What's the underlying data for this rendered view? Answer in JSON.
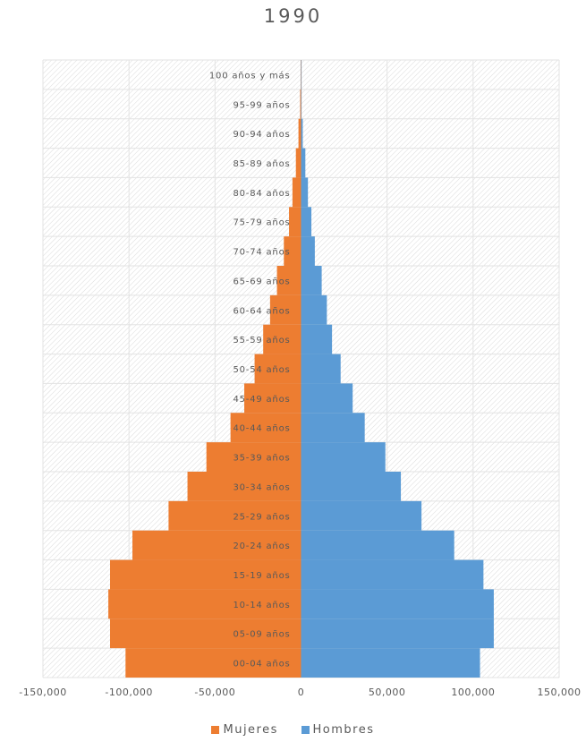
{
  "chart_data": {
    "type": "bar",
    "orientation": "horizontal",
    "stacked": true,
    "title": "1990",
    "categories": [
      "00-04 años",
      "05-09 años",
      "10-14 años",
      "15-19 años",
      "20-24 años",
      "25-29 años",
      "30-34 años",
      "35-39 años",
      "40-44 años",
      "45-49 años",
      "50-54 años",
      "55-59 años",
      "60-64 años",
      "65-69 años",
      "70-74 años",
      "75-79 años",
      "80-84 años",
      "85-89 años",
      "90-94 años",
      "95-99 años",
      "100 años y más"
    ],
    "series": [
      {
        "name": "Mujeres",
        "color": "#ED7D31",
        "values": [
          -102000,
          -111000,
          -112000,
          -111000,
          -98000,
          -77000,
          -66000,
          -55000,
          -41000,
          -33000,
          -27000,
          -22000,
          -18000,
          -14000,
          -10000,
          -7000,
          -5000,
          -3000,
          -1500,
          -500,
          -200
        ]
      },
      {
        "name": "Hombres",
        "color": "#5B9BD5",
        "values": [
          104000,
          112000,
          112000,
          106000,
          89000,
          70000,
          58000,
          49000,
          37000,
          30000,
          23000,
          18000,
          15000,
          12000,
          8000,
          6000,
          4000,
          2500,
          1000,
          300,
          100
        ]
      }
    ],
    "xlim": [
      -150000,
      150000
    ],
    "xticks": [
      -150000,
      -100000,
      -50000,
      0,
      50000,
      100000,
      150000
    ],
    "xtick_labels": [
      "-150,000",
      "-100,000",
      "-50,000",
      "0",
      "50,000",
      "100,000",
      "150,000"
    ],
    "grid": true,
    "legend_position": "bottom"
  }
}
